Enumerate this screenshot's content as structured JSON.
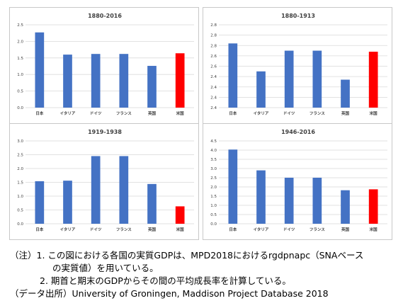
{
  "chart_data": [
    {
      "type": "bar",
      "title": "1880-2016",
      "categories": [
        "日本",
        "イタリア",
        "ドイツ",
        "フランス",
        "英国",
        "米国"
      ],
      "values": [
        2.27,
        1.6,
        1.62,
        1.62,
        1.26,
        1.64
      ],
      "highlight_index": 5,
      "ylim": [
        0,
        2.5
      ],
      "yticks": [
        "0.0",
        "0.5",
        "1.0",
        "1.5",
        "2.0",
        "2.5"
      ],
      "grid": true
    },
    {
      "type": "bar",
      "title": "1880-1913",
      "categories": [
        "日本",
        "イタリア",
        "ドイツ",
        "フランス",
        "英国",
        "米国"
      ],
      "values": [
        2.82,
        2.55,
        2.75,
        2.75,
        2.47,
        2.74
      ],
      "highlight_index": 5,
      "ylim": [
        2.2,
        3.0
      ],
      "yticks": [
        "2.4",
        "2.4",
        "2.4",
        "2.4",
        "2.6",
        "2.6",
        "2.8",
        "2.8",
        "2.8"
      ],
      "grid": true
    },
    {
      "type": "bar",
      "title": "1919-1938",
      "categories": [
        "日本",
        "イタリア",
        "ドイツ",
        "フランス",
        "英国",
        "米国"
      ],
      "values": [
        1.54,
        1.56,
        2.45,
        2.45,
        1.44,
        0.63
      ],
      "highlight_index": 5,
      "ylim": [
        0,
        3.0
      ],
      "yticks": [
        "0.0",
        "0.5",
        "1.0",
        "1.5",
        "2.0",
        "2.5",
        "3.0"
      ],
      "grid": true
    },
    {
      "type": "bar",
      "title": "1946-2016",
      "categories": [
        "日本",
        "イタリア",
        "ドイツ",
        "フランス",
        "英国",
        "米国"
      ],
      "values": [
        4.03,
        2.9,
        2.5,
        2.5,
        1.82,
        1.87
      ],
      "highlight_index": 5,
      "ylim": [
        0,
        4.5
      ],
      "yticks": [
        "0.0",
        "0.5",
        "1.0",
        "1.5",
        "2.0",
        "2.5",
        "3.0",
        "3.5",
        "4.0",
        "4.5"
      ],
      "grid": true
    }
  ],
  "colors": {
    "bar": "#4472c4",
    "highlight": "#ff0000",
    "grid": "#d9d9d9",
    "text": "#404040"
  },
  "notes": {
    "line1": "（注）1. この図における各国の実質GDPは、MPD2018におけるrgdpnapc（SNAベース",
    "line2": "の実質値）を用いている。",
    "line3": "2. 期首と期末のGDPからその間の平均成長率を計算している。",
    "line4": "（データ出所）University of Groningen, Maddison Project Database 2018"
  }
}
